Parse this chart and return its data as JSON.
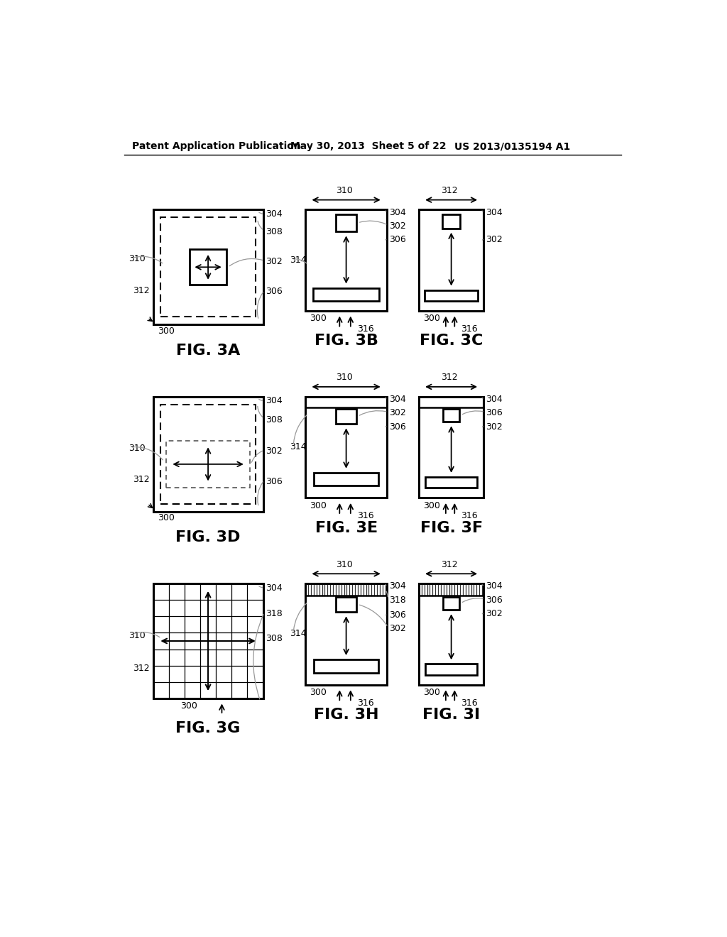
{
  "header_left": "Patent Application Publication",
  "header_mid": "May 30, 2013  Sheet 5 of 22",
  "header_right": "US 2013/0135194 A1",
  "bg_color": "#ffffff",
  "header_fontsize": 10,
  "ref_fontsize": 9,
  "fig_label_fontsize": 16
}
